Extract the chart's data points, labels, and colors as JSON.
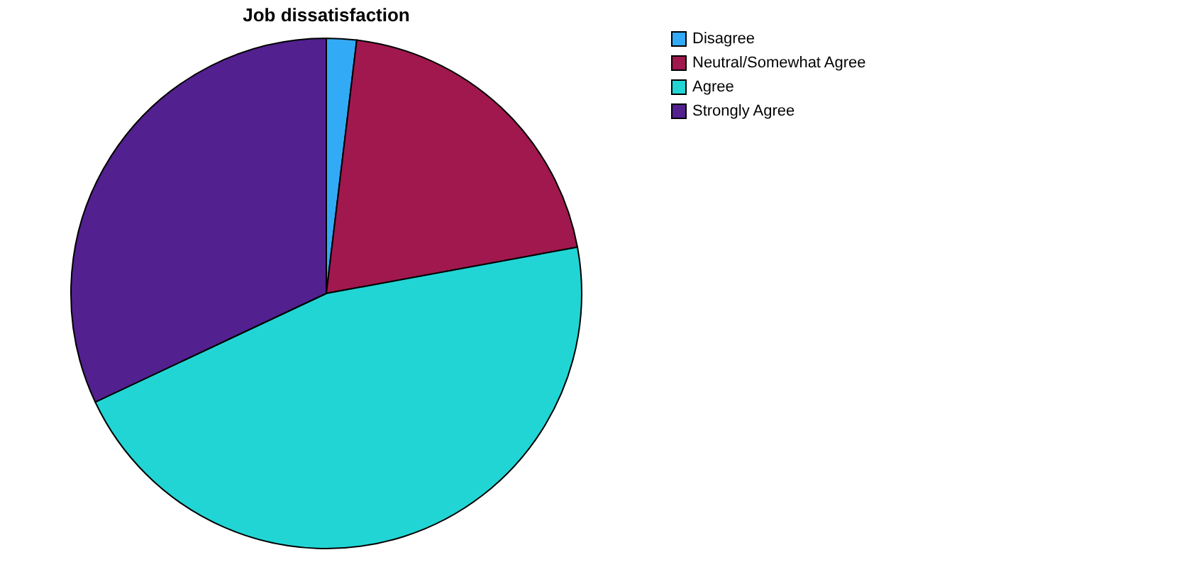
{
  "chart_data": {
    "type": "pie",
    "title": "Job dissatisfaction",
    "categories": [
      "Disagree",
      "Neutral/Somewhat Agree",
      "Agree",
      "Strongly Agree"
    ],
    "values": [
      1.9,
      20.2,
      45.9,
      32.0
    ],
    "colors": [
      "#33aaf5",
      "#a0184e",
      "#22d5d5",
      "#52208f"
    ],
    "legend": "top right"
  }
}
